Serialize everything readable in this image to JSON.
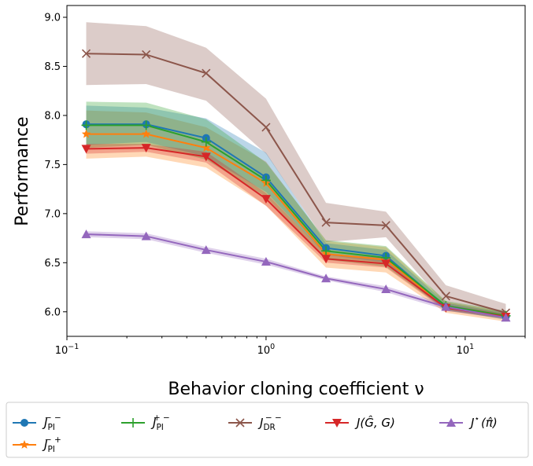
{
  "chart_data": {
    "type": "line",
    "xscale": "log",
    "xlabel": "Behavior cloning coefficient ν",
    "ylabel": "Performance",
    "xlim": [
      0.1,
      20
    ],
    "ylim": [
      5.75,
      9.12
    ],
    "x": [
      0.125,
      0.25,
      0.5,
      1,
      2,
      4,
      8,
      16
    ],
    "xticks": [
      {
        "value": 0.1,
        "base": "10",
        "exp": "−1"
      },
      {
        "value": 1,
        "base": "10",
        "exp": "0"
      },
      {
        "value": 10,
        "base": "10",
        "exp": "1"
      }
    ],
    "yticks": [
      "6.0",
      "6.5",
      "7.0",
      "7.5",
      "8.0",
      "8.5",
      "9.0"
    ],
    "ytick_values": [
      6.0,
      6.5,
      7.0,
      7.5,
      8.0,
      8.5,
      9.0
    ],
    "grid": false,
    "legend_position": "below",
    "series": [
      {
        "id": "s0",
        "color": "#1f77b4",
        "marker": "circle",
        "values": [
          7.91,
          7.91,
          7.77,
          7.37,
          6.65,
          6.57,
          6.05,
          5.95
        ],
        "lower": [
          7.7,
          7.73,
          7.58,
          7.22,
          6.58,
          6.5,
          6.01,
          5.93
        ],
        "upper": [
          8.1,
          8.08,
          7.97,
          7.62,
          6.7,
          6.63,
          6.09,
          5.99
        ]
      },
      {
        "id": "s1",
        "color": "#ff7f0e",
        "marker": "star",
        "values": [
          7.81,
          7.81,
          7.67,
          7.31,
          6.59,
          6.53,
          6.05,
          5.95
        ],
        "lower": [
          7.56,
          7.58,
          7.47,
          7.08,
          6.45,
          6.4,
          5.99,
          5.9
        ],
        "upper": [
          8.05,
          8.03,
          7.88,
          7.53,
          6.72,
          6.66,
          6.1,
          6.0
        ]
      },
      {
        "id": "s2",
        "color": "#2ca02c",
        "marker": "plus",
        "values": [
          7.9,
          7.9,
          7.73,
          7.34,
          6.62,
          6.55,
          6.06,
          5.96
        ],
        "lower": [
          7.67,
          7.7,
          7.55,
          7.17,
          6.53,
          6.46,
          6.02,
          5.92
        ],
        "upper": [
          8.14,
          8.13,
          7.96,
          7.52,
          6.73,
          6.67,
          6.11,
          6.01
        ]
      },
      {
        "id": "s3",
        "color": "#8c564b",
        "marker": "x",
        "values": [
          8.63,
          8.62,
          8.43,
          7.88,
          6.91,
          6.88,
          6.16,
          5.99
        ],
        "lower": [
          8.31,
          8.32,
          8.15,
          7.61,
          6.71,
          6.76,
          6.07,
          5.93
        ],
        "upper": [
          8.95,
          8.91,
          8.69,
          8.17,
          7.11,
          7.02,
          6.27,
          6.08
        ]
      },
      {
        "id": "s4",
        "color": "#d62728",
        "marker": "triangle-down",
        "values": [
          7.66,
          7.67,
          7.58,
          7.15,
          6.54,
          6.49,
          6.04,
          5.95
        ],
        "lower": [
          7.61,
          7.63,
          7.52,
          7.08,
          6.5,
          6.45,
          6.01,
          5.93
        ],
        "upper": [
          7.71,
          7.71,
          7.63,
          7.21,
          6.59,
          6.55,
          6.07,
          5.98
        ]
      },
      {
        "id": "s5",
        "color": "#9467bd",
        "marker": "triangle-up",
        "values": [
          6.79,
          6.77,
          6.63,
          6.51,
          6.34,
          6.23,
          6.05,
          5.94
        ],
        "lower": [
          6.76,
          6.74,
          6.6,
          6.48,
          6.32,
          6.2,
          6.02,
          5.92
        ],
        "upper": [
          6.82,
          6.8,
          6.66,
          6.54,
          6.36,
          6.26,
          6.08,
          5.96
        ]
      }
    ],
    "draw_order": [
      "s3",
      "s1",
      "s0",
      "s2",
      "s4",
      "s5"
    ],
    "legend": [
      {
        "series": "s0",
        "main": "J",
        "sub": "PI",
        "sup": "− −"
      },
      {
        "series": "s2",
        "main": "J",
        "sub": "PI",
        "sup": "+ −"
      },
      {
        "series": "s3",
        "main": "J",
        "sub": "DR",
        "sup": "− −"
      },
      {
        "series": "s4",
        "main": "J(Ĝ, G)",
        "sub": "",
        "sup": ""
      },
      {
        "series": "s5",
        "main": "J",
        "sub": "",
        "sup": "⋆",
        "tail": "(π̂)"
      },
      {
        "series": "s1",
        "main": "J",
        "sub": "PI",
        "sup": "− +"
      }
    ]
  }
}
